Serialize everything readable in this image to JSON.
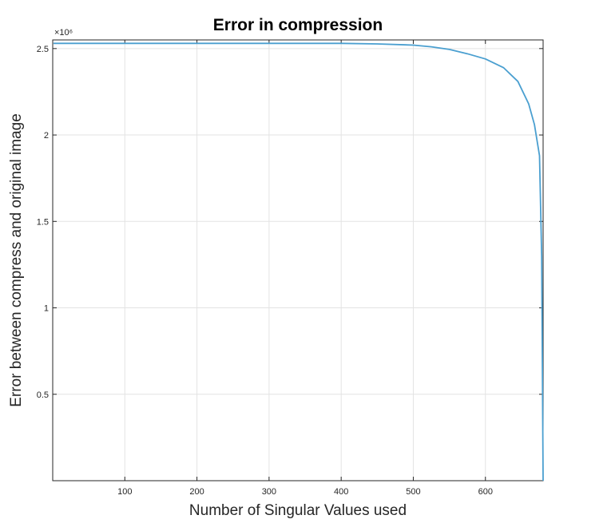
{
  "chart_data": {
    "type": "line",
    "title": "Error in compression",
    "xlabel": "Number of Singular Values used",
    "ylabel": "Error between compress and original image",
    "y_multiplier_label": "×10⁶",
    "xlim": [
      0,
      680
    ],
    "ylim": [
      0,
      2.55
    ],
    "x_ticks": [
      100,
      200,
      300,
      400,
      500,
      600
    ],
    "x_tick_labels": [
      "100",
      "200",
      "300",
      "400",
      "500",
      "600"
    ],
    "y_ticks": [
      0.5,
      1,
      1.5,
      2,
      2.5
    ],
    "y_tick_labels": [
      "0.5",
      "1",
      "1.5",
      "2",
      "2.5"
    ],
    "grid": true,
    "colors": {
      "line": "#4a9fd0",
      "grid": "#e3e3e3",
      "axis": "#262626"
    },
    "series": [
      {
        "x": [
          1,
          100,
          200,
          300,
          400,
          450,
          500,
          525,
          550,
          575,
          600,
          625,
          645,
          660,
          668,
          675,
          678,
          680
        ],
        "values": [
          2.53,
          2.53,
          2.53,
          2.53,
          2.53,
          2.527,
          2.52,
          2.51,
          2.495,
          2.47,
          2.44,
          2.39,
          2.31,
          2.18,
          2.06,
          1.88,
          1.3,
          0.0
        ]
      }
    ]
  }
}
